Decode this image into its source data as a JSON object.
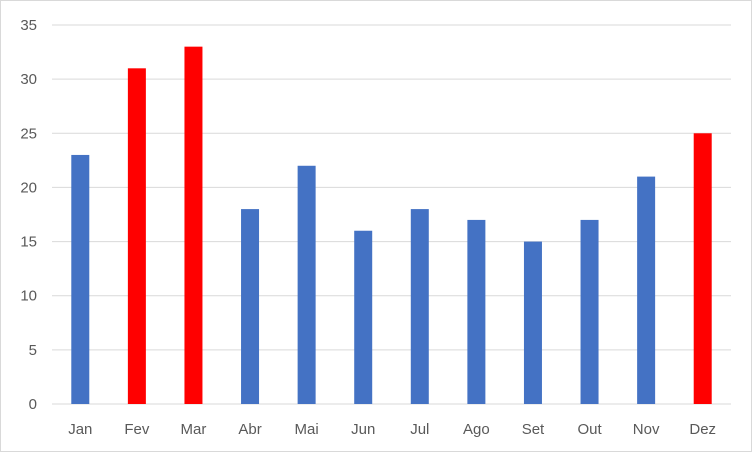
{
  "chart_data": {
    "type": "bar",
    "title": "",
    "xlabel": "",
    "ylabel": "",
    "categories": [
      "Jan",
      "Fev",
      "Mar",
      "Abr",
      "Mai",
      "Jun",
      "Jul",
      "Ago",
      "Set",
      "Out",
      "Nov",
      "Dez"
    ],
    "values": [
      23,
      31,
      33,
      18,
      22,
      16,
      18,
      17,
      15,
      17,
      21,
      25
    ],
    "ylim": [
      0,
      35
    ],
    "yticks": [
      0,
      5,
      10,
      15,
      20,
      25,
      30,
      35
    ],
    "grid": true,
    "legend": "none",
    "colors": {
      "default": "#4472c4",
      "highlight": "#ff0000"
    },
    "highlighted": [
      "Fev",
      "Mar",
      "Dez"
    ]
  }
}
